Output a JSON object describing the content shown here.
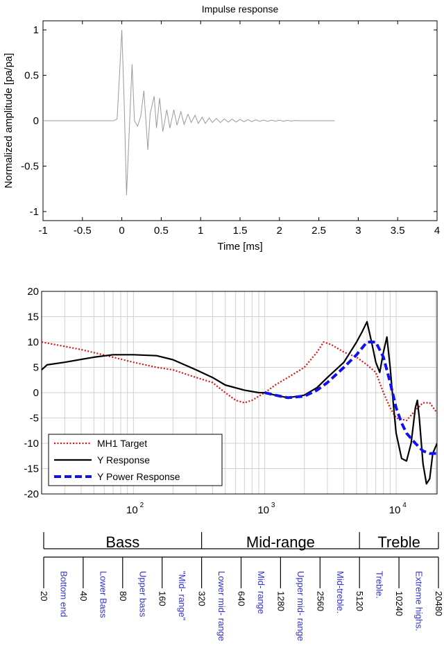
{
  "chart_data": [
    {
      "type": "line",
      "title": "Impulse response",
      "xlabel": "Time [ms]",
      "ylabel": "Normalized amplitude [pa/pa]",
      "xlim": [
        -1,
        4
      ],
      "ylim": [
        -1.1,
        1.1
      ],
      "xticks": [
        -1,
        -0.5,
        0,
        0.5,
        1,
        1.5,
        2,
        2.5,
        3,
        3.5,
        4
      ],
      "xtick_labels": [
        "-1",
        "-0.5",
        "0",
        "0.5",
        "1",
        "1.5",
        "2",
        "2.5",
        "3",
        "3.5",
        "4"
      ],
      "yticks": [
        -1,
        -0.5,
        0,
        0.5,
        1
      ],
      "ytick_labels": [
        "-1",
        "-0.5",
        "0",
        "0.5",
        "1"
      ],
      "grid": false,
      "color": "#999999",
      "series": [
        {
          "x": [
            -1,
            -0.1,
            -0.06,
            -0.03,
            0,
            0.03,
            0.06,
            0.09,
            0.13,
            0.16,
            0.2,
            0.24,
            0.28,
            0.33,
            0.36,
            0.41,
            0.44,
            0.48,
            0.52,
            0.57,
            0.61,
            0.66,
            0.7,
            0.75,
            0.79,
            0.84,
            0.88,
            0.93,
            0.97,
            1.02,
            1.06,
            1.11,
            1.15,
            1.2,
            1.25,
            1.3,
            1.35,
            1.4,
            1.45,
            1.5,
            1.55,
            1.6,
            1.65,
            1.7,
            1.75,
            1.8,
            1.85,
            1.9,
            1.95,
            2.0,
            2.05,
            2.1,
            2.15,
            2.2,
            2.25,
            2.7
          ],
          "y": [
            0,
            0,
            0.02,
            0.5,
            1.0,
            0.2,
            -0.82,
            -0.2,
            0.62,
            0.0,
            -0.06,
            0.05,
            0.33,
            -0.32,
            0.08,
            0.27,
            -0.08,
            0.25,
            -0.12,
            0.12,
            -0.08,
            0.12,
            -0.05,
            0.1,
            -0.04,
            0.07,
            -0.02,
            0.06,
            -0.03,
            0.04,
            -0.03,
            0.03,
            -0.02,
            0.025,
            -0.02,
            0.02,
            -0.015,
            0.018,
            -0.015,
            0.015,
            -0.012,
            0.012,
            -0.01,
            0.01,
            -0.008,
            0.008,
            -0.008,
            0.006,
            -0.005,
            0.005,
            -0.005,
            0.004,
            -0.003,
            0.002,
            0,
            0
          ]
        }
      ]
    },
    {
      "type": "line",
      "title": "",
      "xlabel": "",
      "ylabel": "",
      "xscale": "log",
      "xlim": [
        20,
        20480
      ],
      "ylim": [
        -20,
        20
      ],
      "yticks": [
        -20,
        -15,
        -10,
        -5,
        0,
        5,
        10,
        15,
        20
      ],
      "ytick_labels": [
        "-20",
        "-15",
        "-10",
        "-5",
        "0",
        "5",
        "10",
        "15",
        "20"
      ],
      "xticks": [
        100,
        1000,
        10000
      ],
      "xtick_labels": [
        "10",
        "10",
        "10"
      ],
      "xtick_exponents": [
        "2",
        "3",
        "4"
      ],
      "grid": true,
      "legend_position": "bottom-left",
      "series": [
        {
          "name": "MH1 Target",
          "color": "#dd1111",
          "style": "dotted",
          "x": [
            20,
            40,
            70,
            100,
            150,
            200,
            300,
            400,
            500,
            600,
            700,
            800,
            1000,
            1200,
            1500,
            2000,
            2500,
            2800,
            3200,
            4000,
            5000,
            6000,
            7000,
            8000,
            9000,
            10000,
            12000,
            14000,
            16000,
            18000,
            20480
          ],
          "y": [
            10,
            8.5,
            7,
            6,
            5,
            4.5,
            3,
            2,
            0,
            -1.5,
            -2,
            -1.5,
            0,
            1.5,
            3,
            5,
            8,
            10,
            9.5,
            8,
            7,
            5.5,
            4,
            0,
            -3,
            -5,
            -5.5,
            -3.5,
            -2,
            -2,
            -4
          ]
        },
        {
          "name": "Y Response",
          "color": "#000000",
          "style": "solid",
          "x": [
            20,
            22,
            30,
            50,
            70,
            100,
            150,
            200,
            300,
            400,
            500,
            700,
            900,
            1000,
            1200,
            1500,
            2000,
            2500,
            3000,
            4000,
            5000,
            5500,
            6000,
            6500,
            7000,
            7500,
            8000,
            8500,
            9000,
            9500,
            10000,
            11000,
            12000,
            13000,
            14000,
            14500,
            15000,
            16000,
            17000,
            18000,
            19000,
            20480
          ],
          "y": [
            4.5,
            5.5,
            6,
            7,
            7.5,
            7.5,
            7.3,
            6.5,
            4.5,
            3,
            1.5,
            0.5,
            0,
            0,
            -0.5,
            -1,
            -0.5,
            1,
            3,
            6,
            10,
            12,
            14,
            10,
            6,
            4,
            8,
            11,
            5,
            -2,
            -8,
            -13,
            -13.5,
            -10,
            -3,
            -1.5,
            -5,
            -14,
            -18,
            -17,
            -12,
            -10
          ]
        },
        {
          "name": "Y Power Response",
          "color": "#1111ee",
          "style": "dashed",
          "x": [
            1000,
            1200,
            1500,
            2000,
            2500,
            3000,
            4000,
            5000,
            6000,
            7000,
            8000,
            9000,
            10000,
            11000,
            12000,
            14000,
            16000,
            18000,
            20480
          ],
          "y": [
            0,
            -0.5,
            -1,
            -0.7,
            0.5,
            2,
            5,
            7.5,
            10,
            10,
            7,
            2,
            -3,
            -6,
            -8,
            -10,
            -11.5,
            -12,
            -12
          ]
        }
      ]
    }
  ],
  "frequency_bands": {
    "tiers": [
      {
        "label": "Bass",
        "from": 20,
        "to": 320
      },
      {
        "label": "Mid-range",
        "from": 320,
        "to": 5120
      },
      {
        "label": "Treble",
        "from": 5120,
        "to": 20480
      }
    ],
    "boundaries": [
      {
        "value": 20,
        "label": "20"
      },
      {
        "value": 40,
        "label": "40"
      },
      {
        "value": 80,
        "label": "80"
      },
      {
        "value": 160,
        "label": "160"
      },
      {
        "value": 320,
        "label": "320"
      },
      {
        "value": 640,
        "label": "640"
      },
      {
        "value": 1280,
        "label": "1280"
      },
      {
        "value": 2560,
        "label": "2560"
      },
      {
        "value": 5120,
        "label": "5120"
      },
      {
        "value": 10240,
        "label": "10240"
      },
      {
        "value": 20480,
        "label": "20480"
      }
    ],
    "bands": [
      {
        "label": "Bottom end"
      },
      {
        "label": "Lower Bass"
      },
      {
        "label": "Upper bass"
      },
      {
        "label": "\"Mid- range\""
      },
      {
        "label": "Lower mid- range"
      },
      {
        "label": "Mid- range"
      },
      {
        "label": "Upper mid- range"
      },
      {
        "label": "Mid-treble."
      },
      {
        "label": "Treble."
      },
      {
        "label": "Extreme highs."
      }
    ],
    "text_color": "#3333cc"
  }
}
